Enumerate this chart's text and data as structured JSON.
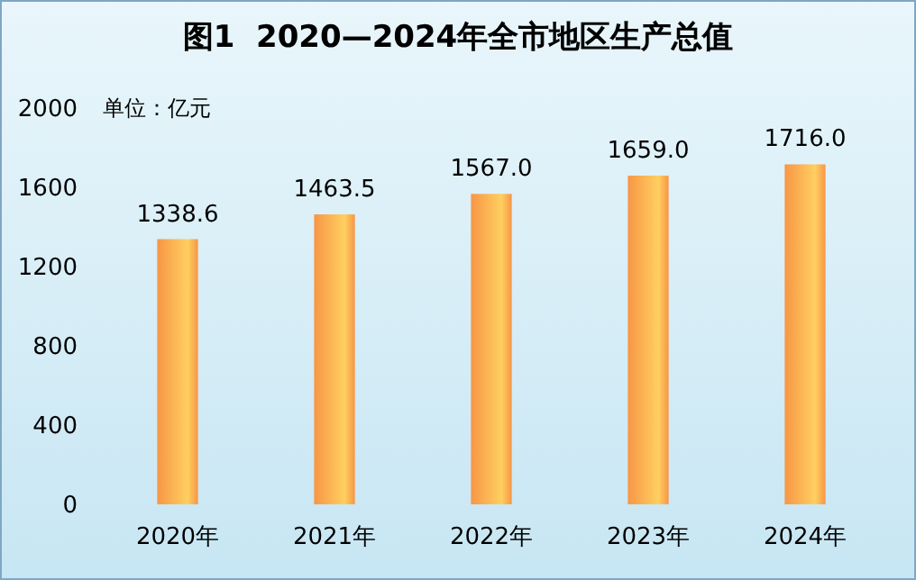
{
  "chart_data": {
    "type": "bar",
    "title": "图1  2020—2024年全市地区生产总值",
    "annotations": [
      "单位：亿元"
    ],
    "categories": [
      "2020年",
      "2021年",
      "2022年",
      "2023年",
      "2024年"
    ],
    "values": [
      1338.6,
      1463.5,
      1567.0,
      1659.0,
      1716.0
    ],
    "value_labels": [
      "1338.6",
      "1463.5",
      "1567.0",
      "1659.0",
      "1716.0"
    ],
    "color": "#f79646",
    "ylim": [
      0,
      2000
    ],
    "yticks": [
      0,
      400,
      800,
      1200,
      1600,
      2000
    ],
    "grid": false
  }
}
